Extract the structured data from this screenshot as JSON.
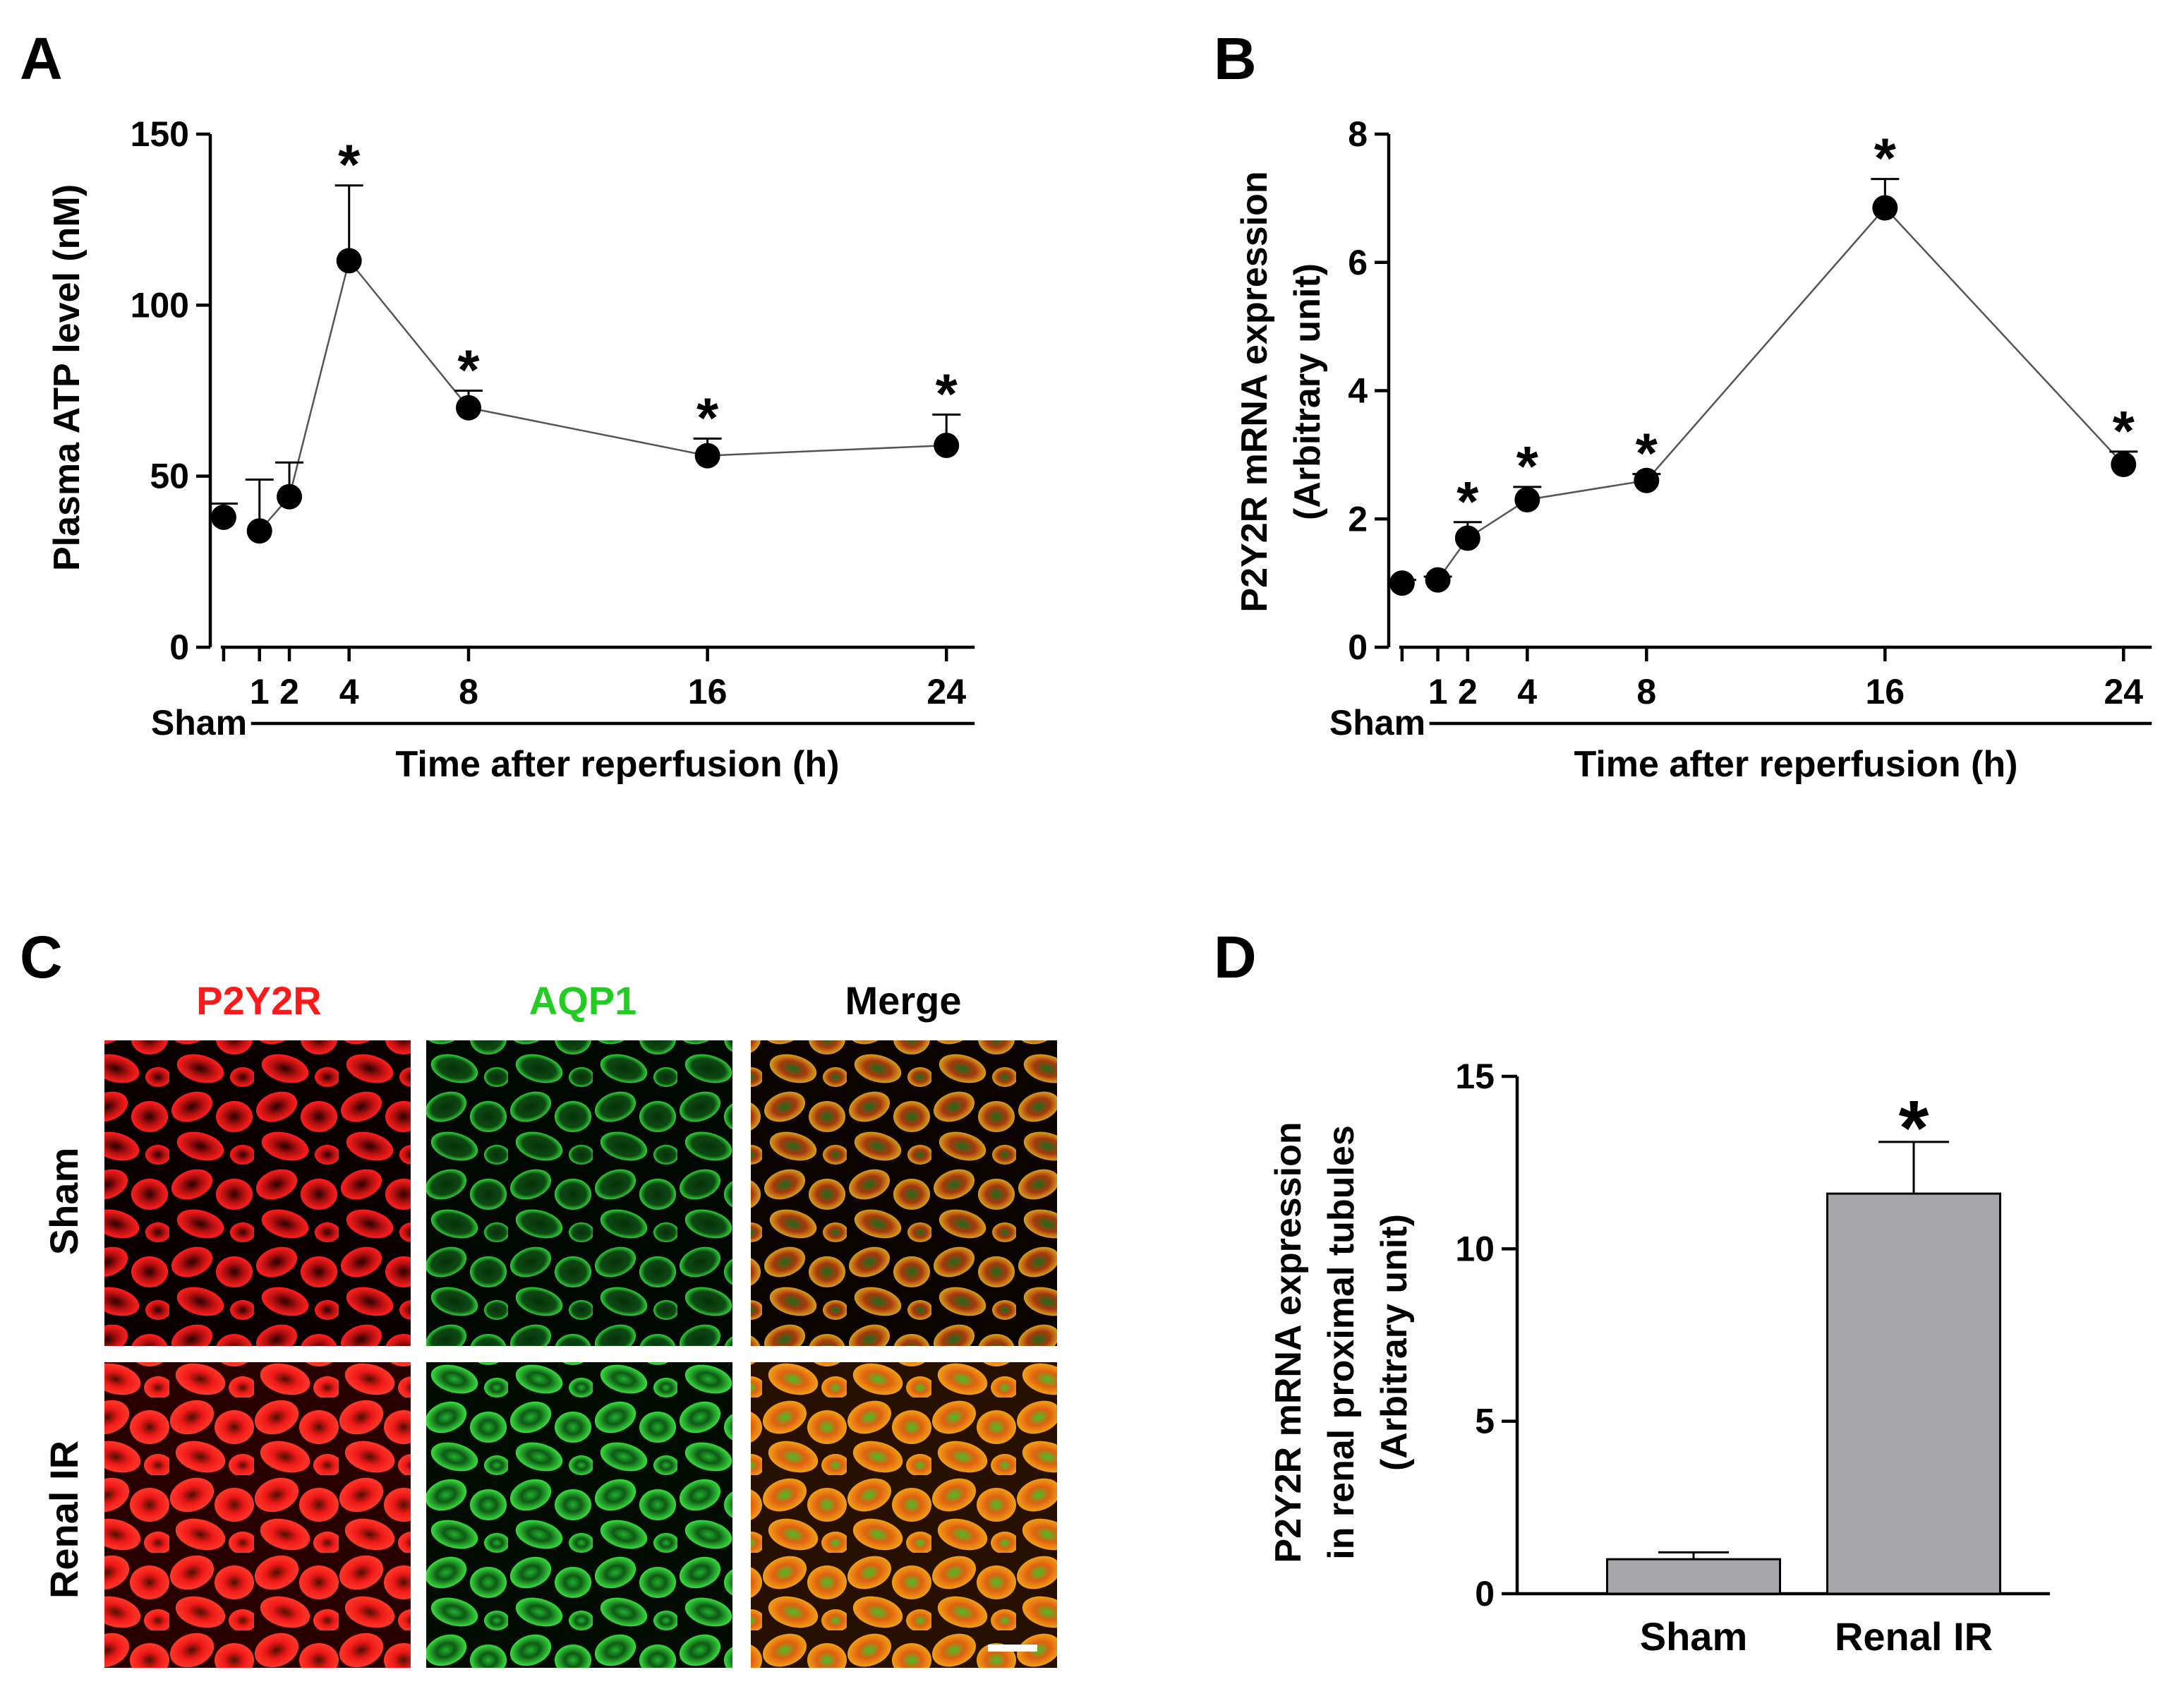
{
  "panels": {
    "a": "A",
    "b": "B",
    "c": "C",
    "d": "D"
  },
  "colors": {
    "marker": "#000000",
    "line": "#555555",
    "bar_fill": "#a6a6ab",
    "p2y2r": "#ff1a1a",
    "aqp1": "#22cc22",
    "merge": "#000000"
  },
  "chart_data": [
    {
      "id": "A",
      "type": "line",
      "title": "",
      "xlabel": "Time after reperfusion (h)",
      "ylabel": "Plasma ATP level (nM)",
      "ylim": [
        0,
        150
      ],
      "yticks": [
        "0",
        "50",
        "100",
        "150"
      ],
      "sham_label": "Sham",
      "x_ticks": [
        "1",
        "2",
        "4",
        "8",
        "16",
        "24"
      ],
      "sham_point": {
        "x": -0.2,
        "y": 38,
        "err": 4
      },
      "series": [
        {
          "name": "Renal IR",
          "x": [
            1,
            2,
            4,
            8,
            16,
            24
          ],
          "y": [
            34,
            44,
            113,
            70,
            56,
            59
          ],
          "err": [
            15,
            10,
            22,
            5,
            5,
            9
          ],
          "sig": [
            "",
            "",
            "*",
            "*",
            "*",
            "*"
          ]
        }
      ]
    },
    {
      "id": "B",
      "type": "line",
      "title": "",
      "xlabel": "Time after reperfusion (h)",
      "ylabel": "P2Y2R mRNA expression",
      "ylabel2": "(Arbitrary unit)",
      "ylim": [
        0,
        8
      ],
      "yticks": [
        "0",
        "2",
        "4",
        "6",
        "8"
      ],
      "sham_label": "Sham",
      "x_ticks": [
        "1",
        "2",
        "4",
        "8",
        "16",
        "24"
      ],
      "sham_point": {
        "x": -0.2,
        "y": 1.0,
        "err": 0.05
      },
      "series": [
        {
          "name": "Renal IR",
          "x": [
            1,
            2,
            4,
            8,
            16,
            24
          ],
          "y": [
            1.05,
            1.7,
            2.3,
            2.6,
            6.85,
            2.85
          ],
          "err": [
            0.05,
            0.25,
            0.2,
            0.1,
            0.45,
            0.2
          ],
          "sig": [
            "",
            "*",
            "*",
            "*",
            "*",
            "*"
          ]
        }
      ]
    },
    {
      "id": "D",
      "type": "bar",
      "title": "",
      "xlabel": "",
      "ylabel_lines": [
        "P2Y2R mRNA expression",
        "in renal proximal tubules",
        "(Arbitrary unit)"
      ],
      "categories": [
        "Sham",
        "Renal IR"
      ],
      "values": [
        1.0,
        11.6
      ],
      "err": [
        0.2,
        1.5
      ],
      "sig": [
        "",
        "*"
      ],
      "ylim": [
        0,
        15
      ],
      "yticks": [
        "0",
        "5",
        "10",
        "15"
      ]
    }
  ],
  "panel_c": {
    "columns": [
      "P2Y2R",
      "AQP1",
      "Merge"
    ],
    "rows": [
      "Sham",
      "Renal IR"
    ]
  }
}
